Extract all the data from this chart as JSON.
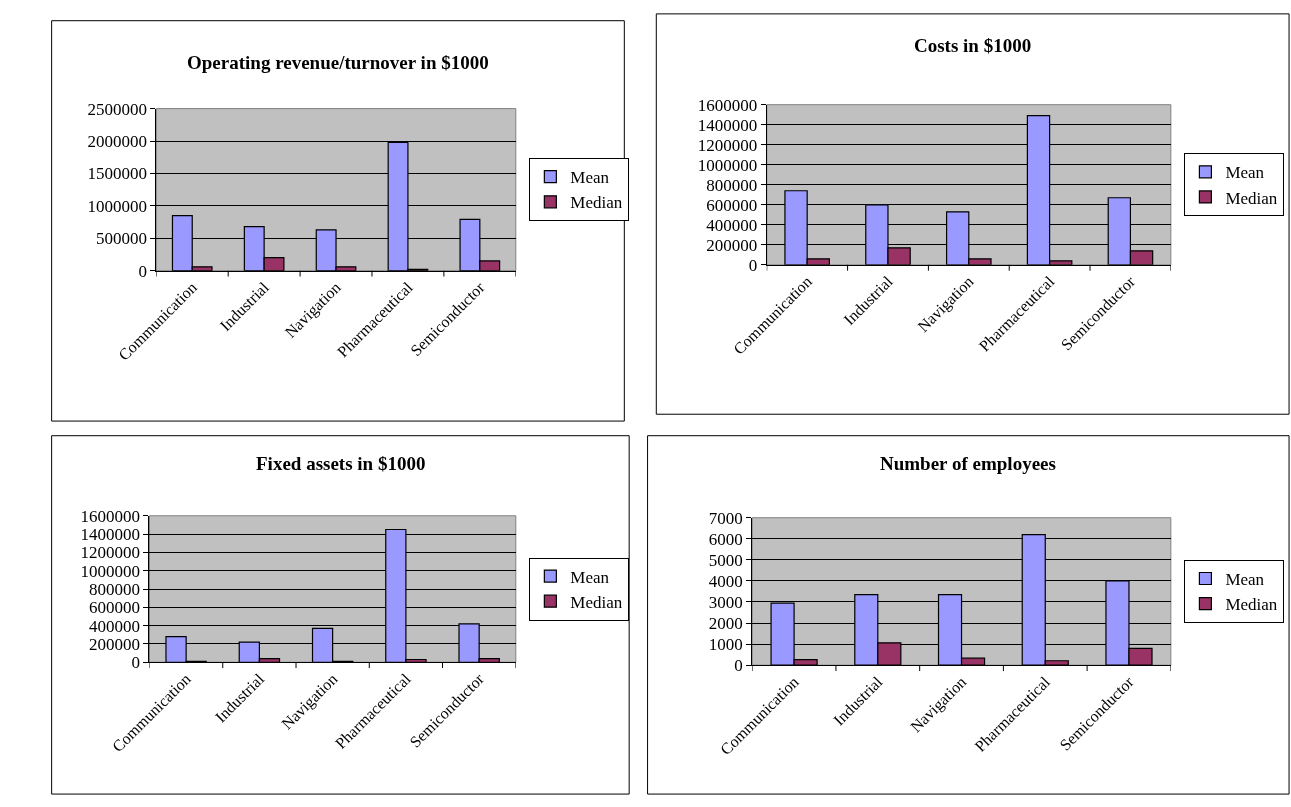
{
  "chart_data": [
    {
      "type": "bar",
      "title": "Operating revenue/turnover in $1000",
      "categories": [
        "Communication",
        "Industrial",
        "Navigation",
        "Pharmaceutical",
        "Semiconductor"
      ],
      "ylim": [
        0,
        2500000
      ],
      "yticks": [
        0,
        500000,
        1000000,
        1500000,
        2000000,
        2500000
      ],
      "grid": "y",
      "legend": "right",
      "series": [
        {
          "name": "Mean",
          "color": "#9999ff",
          "values": [
            850000,
            680000,
            630000,
            1980000,
            790000
          ]
        },
        {
          "name": "Median",
          "color": "#993366",
          "values": [
            60000,
            200000,
            60000,
            20000,
            150000
          ]
        }
      ]
    },
    {
      "type": "bar",
      "title": "Costs in $1000",
      "categories": [
        "Communication",
        "Industrial",
        "Navigation",
        "Pharmaceutical",
        "Semiconductor"
      ],
      "ylim": [
        0,
        1600000
      ],
      "yticks": [
        0,
        200000,
        400000,
        600000,
        800000,
        1000000,
        1200000,
        1400000,
        1600000
      ],
      "grid": "y",
      "legend": "right",
      "series": [
        {
          "name": "Mean",
          "color": "#9999ff",
          "values": [
            740000,
            600000,
            530000,
            1490000,
            670000
          ]
        },
        {
          "name": "Median",
          "color": "#993366",
          "values": [
            60000,
            170000,
            60000,
            40000,
            140000
          ]
        }
      ]
    },
    {
      "type": "bar",
      "title": "Fixed assets in $1000",
      "categories": [
        "Communication",
        "Industrial",
        "Navigation",
        "Pharmaceutical",
        "Semiconductor"
      ],
      "ylim": [
        0,
        1600000
      ],
      "yticks": [
        0,
        200000,
        400000,
        600000,
        800000,
        1000000,
        1200000,
        1400000,
        1600000
      ],
      "grid": "y",
      "legend": "right",
      "series": [
        {
          "name": "Mean",
          "color": "#9999ff",
          "values": [
            280000,
            220000,
            370000,
            1450000,
            420000
          ]
        },
        {
          "name": "Median",
          "color": "#993366",
          "values": [
            10000,
            40000,
            10000,
            30000,
            40000
          ]
        }
      ]
    },
    {
      "type": "bar",
      "title": "Number of employees",
      "categories": [
        "Communication",
        "Industrial",
        "Navigation",
        "Pharmaceutical",
        "Semiconductor"
      ],
      "ylim": [
        0,
        7000
      ],
      "yticks": [
        0,
        1000,
        2000,
        3000,
        4000,
        5000,
        6000,
        7000
      ],
      "grid": "y",
      "legend": "right",
      "series": [
        {
          "name": "Mean",
          "color": "#9999ff",
          "values": [
            2950,
            3350,
            3350,
            6200,
            4000
          ]
        },
        {
          "name": "Median",
          "color": "#993366",
          "values": [
            260,
            1060,
            330,
            210,
            800
          ]
        }
      ]
    }
  ]
}
